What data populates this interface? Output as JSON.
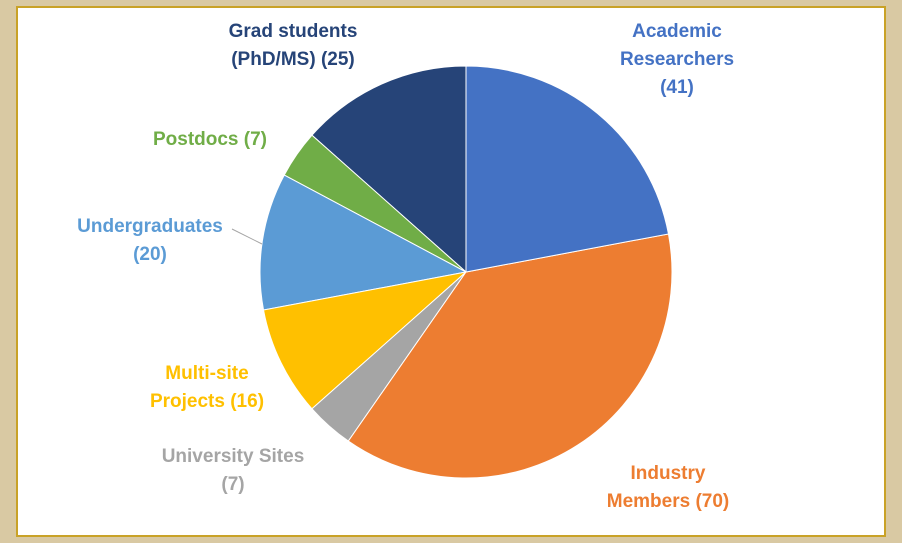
{
  "chart_data": {
    "type": "pie",
    "categories": [
      "Academic Researchers",
      "Industry Members",
      "University Sites",
      "Multi-site Projects",
      "Undergraduates",
      "Postdocs",
      "Grad students (PhD/MS)"
    ],
    "values": [
      41,
      70,
      7,
      16,
      20,
      7,
      25
    ],
    "value_labels": [
      "(41)",
      "(70)",
      "(7)",
      "(16)",
      "(20)",
      "(7)",
      "(25)"
    ],
    "colors": [
      "#4472c4",
      "#ed7d31",
      "#a5a5a5",
      "#ffc000",
      "#5b9bd5",
      "#70ad47",
      "#264478"
    ]
  }
}
